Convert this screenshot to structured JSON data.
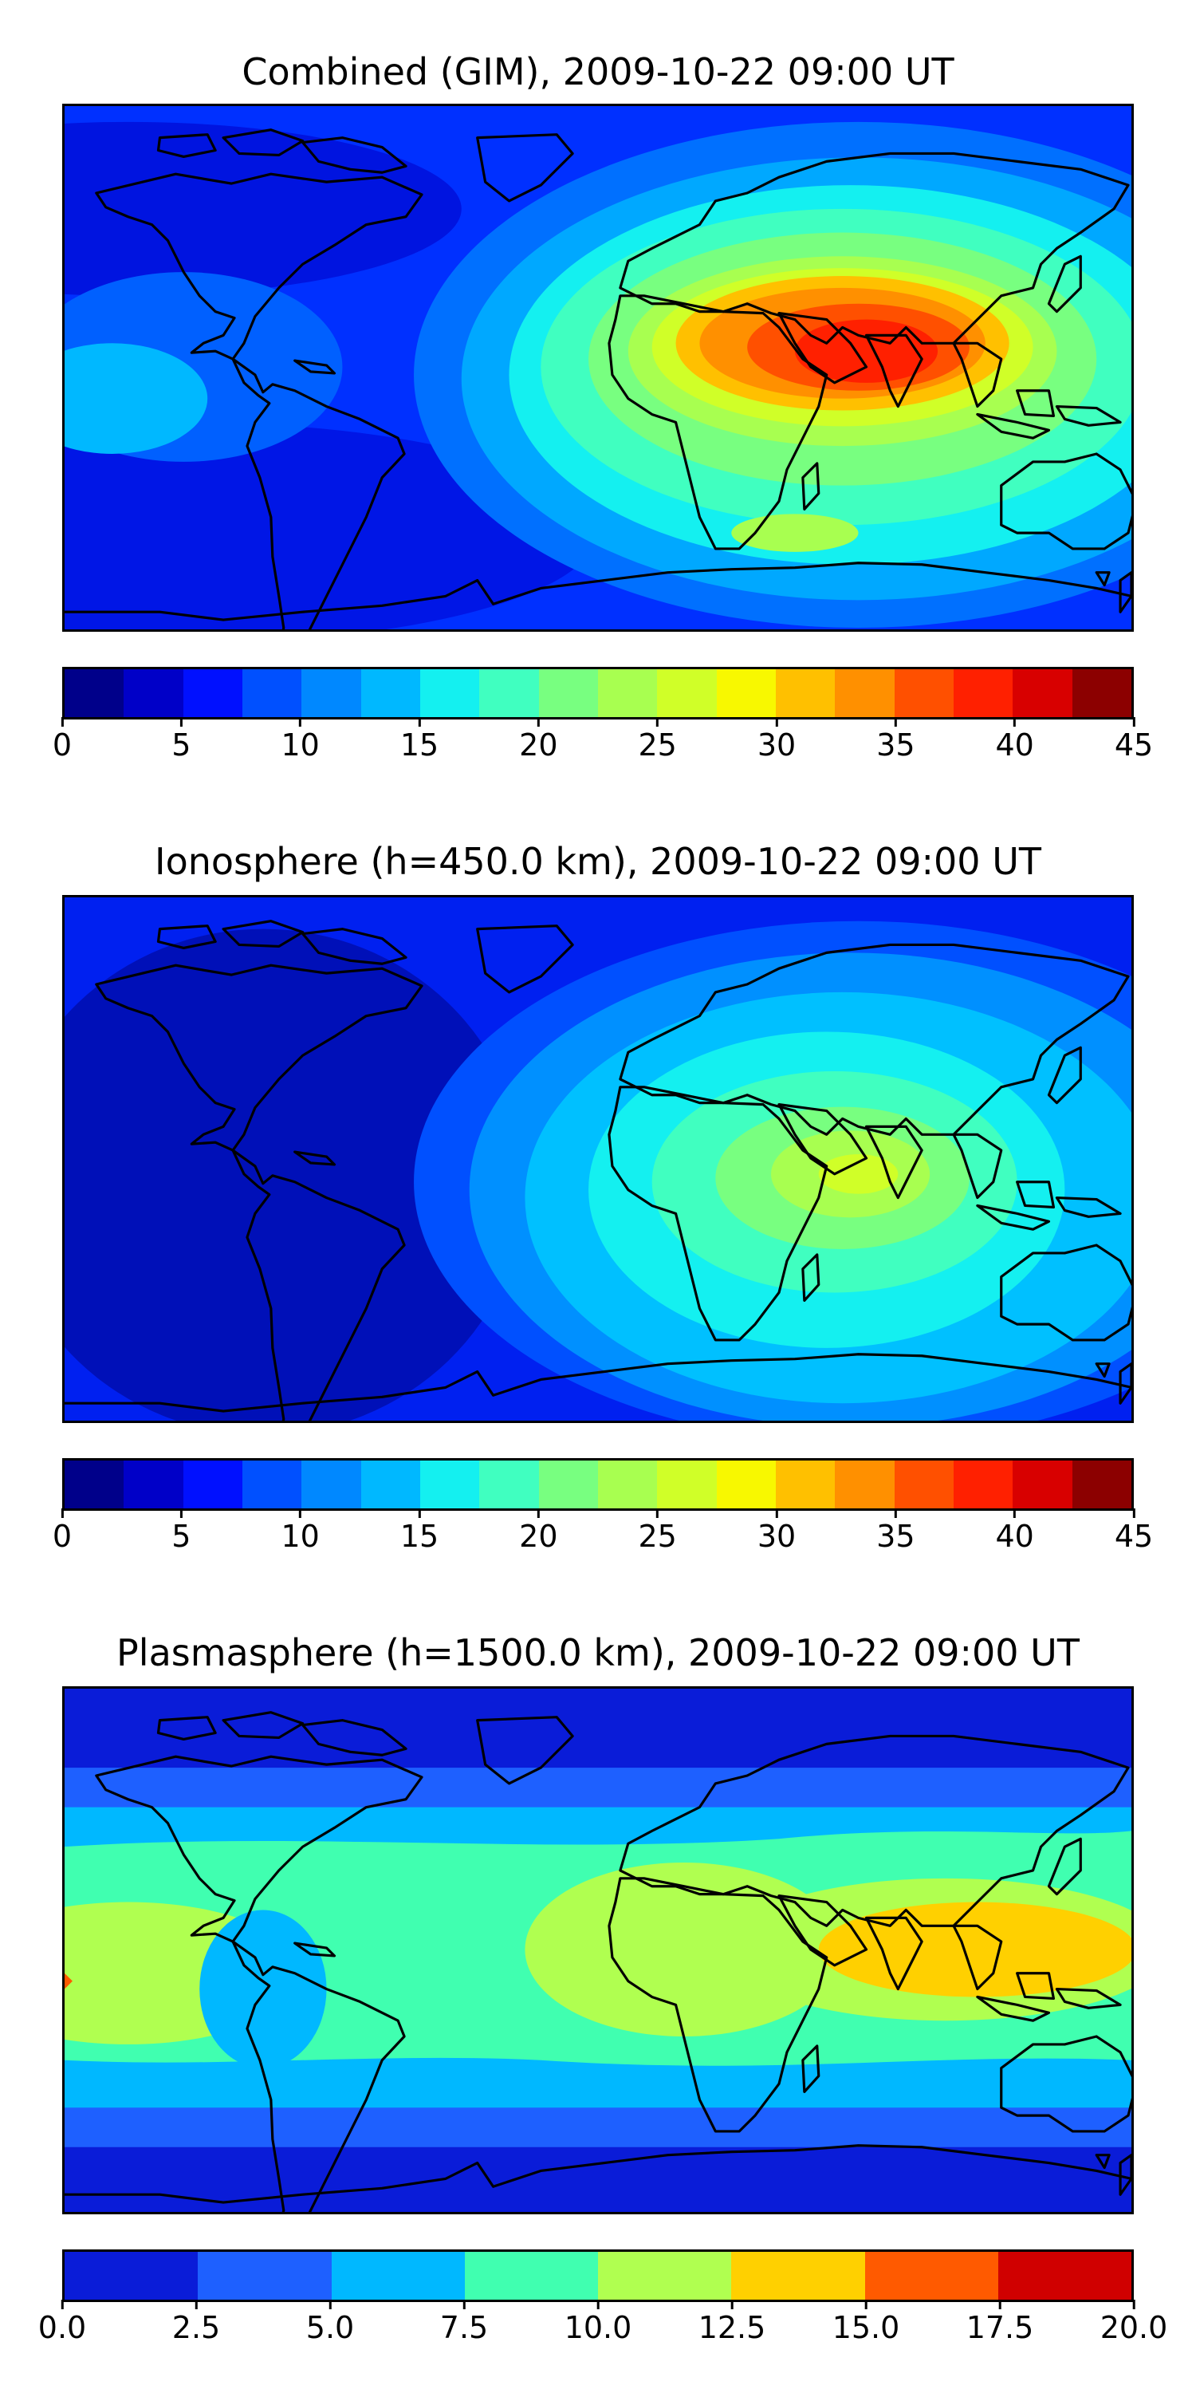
{
  "panels": [
    {
      "title": "Combined (GIM), 2009-10-22 09:00 UT",
      "colorbar": {
        "colors": [
          "#00008a",
          "#0000c8",
          "#0010ff",
          "#0050ff",
          "#0088ff",
          "#00b8ff",
          "#14f0f0",
          "#40ffc0",
          "#78ff80",
          "#a8ff50",
          "#d0ff28",
          "#f8f800",
          "#ffc000",
          "#ff9000",
          "#ff5000",
          "#ff2000",
          "#d80000",
          "#8c0000"
        ],
        "ticks": [
          "0",
          "5",
          "10",
          "15",
          "20",
          "25",
          "30",
          "35",
          "40",
          "45"
        ]
      }
    },
    {
      "title": "Ionosphere  (h=450.0 km), 2009-10-22 09:00 UT",
      "colorbar": {
        "colors": [
          "#00008a",
          "#0000c8",
          "#0010ff",
          "#0050ff",
          "#0088ff",
          "#00b8ff",
          "#14f0f0",
          "#40ffc0",
          "#78ff80",
          "#a8ff50",
          "#d0ff28",
          "#f8f800",
          "#ffc000",
          "#ff9000",
          "#ff5000",
          "#ff2000",
          "#d80000",
          "#8c0000"
        ],
        "ticks": [
          "0",
          "5",
          "10",
          "15",
          "20",
          "25",
          "30",
          "35",
          "40",
          "45"
        ]
      }
    },
    {
      "title": "Plasmasphere (h=1500.0 km), 2009-10-22 09:00 UT",
      "colorbar": {
        "colors": [
          "#0a1cd8",
          "#1e60ff",
          "#00b8ff",
          "#40ffb0",
          "#b0ff50",
          "#ffd000",
          "#ff5a00",
          "#d00000"
        ],
        "ticks": [
          "0.0",
          "2.5",
          "5.0",
          "7.5",
          "10.0",
          "12.5",
          "15.0",
          "17.5",
          "20.0"
        ]
      }
    }
  ]
}
